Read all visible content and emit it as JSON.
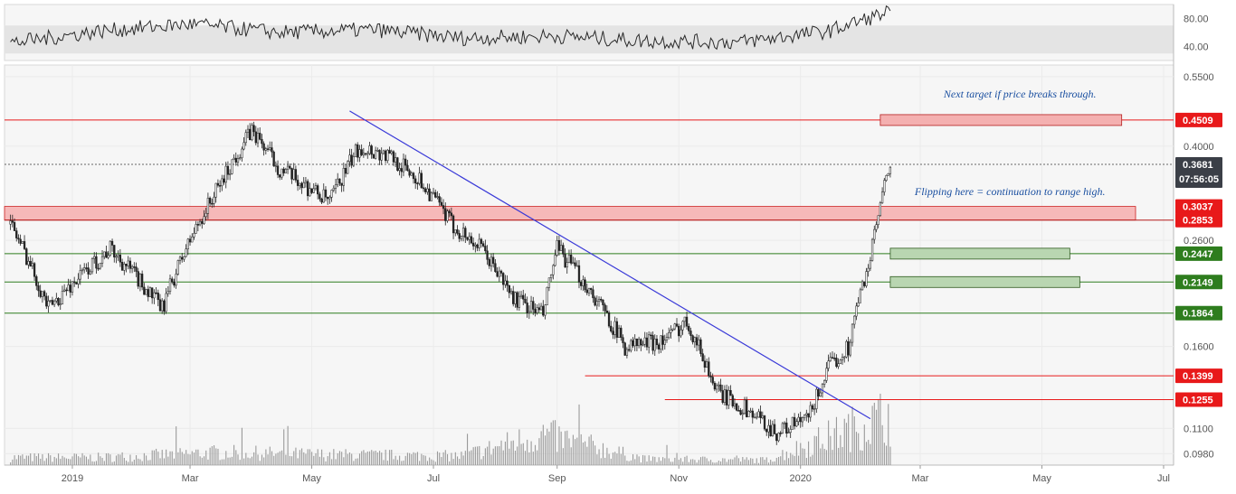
{
  "chart_data": {
    "type": "candlestick",
    "title": "",
    "x_axis": {
      "tick_labels": [
        "2019",
        "Mar",
        "May",
        "Jul",
        "Sep",
        "Nov",
        "2020",
        "Mar",
        "May",
        "Jul"
      ],
      "tick_dates": [
        "2019-01-01",
        "2019-03-01",
        "2019-05-01",
        "2019-07-01",
        "2019-09-01",
        "2019-11-01",
        "2020-01-01",
        "2020-03-01",
        "2020-05-01",
        "2020-07-01"
      ],
      "range": [
        "2018-11-28",
        "2020-07-06"
      ]
    },
    "price_axis": {
      "scale": "log",
      "range": [
        0.093,
        0.58
      ],
      "tick_labels": [
        "0.5500",
        "0.4000",
        "0.2600",
        "0.1600",
        "0.1100",
        "0.0980"
      ],
      "tick_values": [
        0.55,
        0.4,
        0.26,
        0.16,
        0.11,
        0.098
      ]
    },
    "rsi_panel": {
      "range": [
        20,
        100
      ],
      "band": [
        30,
        70
      ],
      "tick_labels": [
        "80.00",
        "40.00"
      ],
      "tick_values": [
        80,
        40
      ],
      "series": [
        {
          "date": "2018-12-01",
          "value": 45
        },
        {
          "date": "2019-01-15",
          "value": 62
        },
        {
          "date": "2019-03-01",
          "value": 72
        },
        {
          "date": "2019-04-15",
          "value": 60
        },
        {
          "date": "2019-06-01",
          "value": 64
        },
        {
          "date": "2019-07-15",
          "value": 52
        },
        {
          "date": "2019-09-01",
          "value": 55
        },
        {
          "date": "2019-10-15",
          "value": 48
        },
        {
          "date": "2019-12-01",
          "value": 46
        },
        {
          "date": "2020-01-15",
          "value": 62
        },
        {
          "date": "2020-02-15",
          "value": 90
        }
      ]
    },
    "price_series": {
      "name": "",
      "points": [
        {
          "date": "2018-12-01",
          "value": 0.28
        },
        {
          "date": "2018-12-20",
          "value": 0.19
        },
        {
          "date": "2019-01-20",
          "value": 0.25
        },
        {
          "date": "2019-02-15",
          "value": 0.19
        },
        {
          "date": "2019-03-15",
          "value": 0.33
        },
        {
          "date": "2019-04-01",
          "value": 0.43
        },
        {
          "date": "2019-04-15",
          "value": 0.36
        },
        {
          "date": "2019-05-10",
          "value": 0.31
        },
        {
          "date": "2019-05-25",
          "value": 0.4
        },
        {
          "date": "2019-06-10",
          "value": 0.38
        },
        {
          "date": "2019-06-25",
          "value": 0.34
        },
        {
          "date": "2019-07-10",
          "value": 0.28
        },
        {
          "date": "2019-07-25",
          "value": 0.25
        },
        {
          "date": "2019-08-10",
          "value": 0.2
        },
        {
          "date": "2019-08-25",
          "value": 0.185
        },
        {
          "date": "2019-09-01",
          "value": 0.25
        },
        {
          "date": "2019-09-20",
          "value": 0.2
        },
        {
          "date": "2019-10-05",
          "value": 0.16
        },
        {
          "date": "2019-10-25",
          "value": 0.165
        },
        {
          "date": "2019-11-05",
          "value": 0.18
        },
        {
          "date": "2019-11-20",
          "value": 0.13
        },
        {
          "date": "2019-12-05",
          "value": 0.12
        },
        {
          "date": "2019-12-20",
          "value": 0.108
        },
        {
          "date": "2020-01-05",
          "value": 0.115
        },
        {
          "date": "2020-01-15",
          "value": 0.145
        },
        {
          "date": "2020-01-25",
          "value": 0.16
        },
        {
          "date": "2020-02-05",
          "value": 0.24
        },
        {
          "date": "2020-02-15",
          "value": 0.368
        }
      ]
    },
    "volume_series": [
      {
        "date": "2019-01-15",
        "value": 0.15
      },
      {
        "date": "2019-03-15",
        "value": 0.25
      },
      {
        "date": "2019-05-15",
        "value": 0.2
      },
      {
        "date": "2019-07-15",
        "value": 0.18
      },
      {
        "date": "2019-08-25",
        "value": 0.6
      },
      {
        "date": "2019-10-15",
        "value": 0.12
      },
      {
        "date": "2019-12-15",
        "value": 0.1
      },
      {
        "date": "2020-02-15",
        "value": 1.0
      }
    ],
    "horizontal_levels": [
      {
        "label": "0.4509",
        "value": 0.4509,
        "color": "#e8191a",
        "style": "red-line"
      },
      {
        "label": "0.3037",
        "value": 0.3037,
        "color": "#e8191a",
        "style": "red-zone-top"
      },
      {
        "label": "0.2853",
        "value": 0.2853,
        "color": "#e8191a",
        "style": "red-zone-bottom"
      },
      {
        "label": "0.2447",
        "value": 0.2447,
        "color": "#2e7d1e",
        "style": "green-line"
      },
      {
        "label": "0.2149",
        "value": 0.2149,
        "color": "#2e7d1e",
        "style": "green-line"
      },
      {
        "label": "0.1864",
        "value": 0.1864,
        "color": "#2e7d1e",
        "style": "green-line"
      },
      {
        "label": "0.1399",
        "value": 0.1399,
        "color": "#e8191a",
        "style": "red-short"
      },
      {
        "label": "0.1255",
        "value": 0.1255,
        "color": "#e8191a",
        "style": "red-short"
      }
    ],
    "current_price": {
      "label": "0.3681",
      "value": 0.3681,
      "countdown": "07:56:05"
    },
    "trendline": {
      "color": "#3a3ad8",
      "from": {
        "date": "2019-05-20",
        "value": 0.47
      },
      "to": {
        "date": "2020-02-05",
        "value": 0.115
      }
    },
    "target_boxes": [
      {
        "color": "#f4b0b0",
        "value": 0.4509,
        "from": "2020-02-10",
        "to": "2020-06-10"
      },
      {
        "color": "#b9d6b1",
        "value": 0.2447,
        "from": "2020-02-15",
        "to": "2020-05-15"
      },
      {
        "color": "#b9d6b1",
        "value": 0.2149,
        "from": "2020-02-15",
        "to": "2020-05-20"
      }
    ],
    "annotations": [
      {
        "text": "Next target if price breaks through.",
        "date": "2020-04-20",
        "value": 0.5
      },
      {
        "text": "Flipping here = continuation to range high.",
        "date": "2020-04-15",
        "value": 0.32
      }
    ],
    "grid": true
  }
}
